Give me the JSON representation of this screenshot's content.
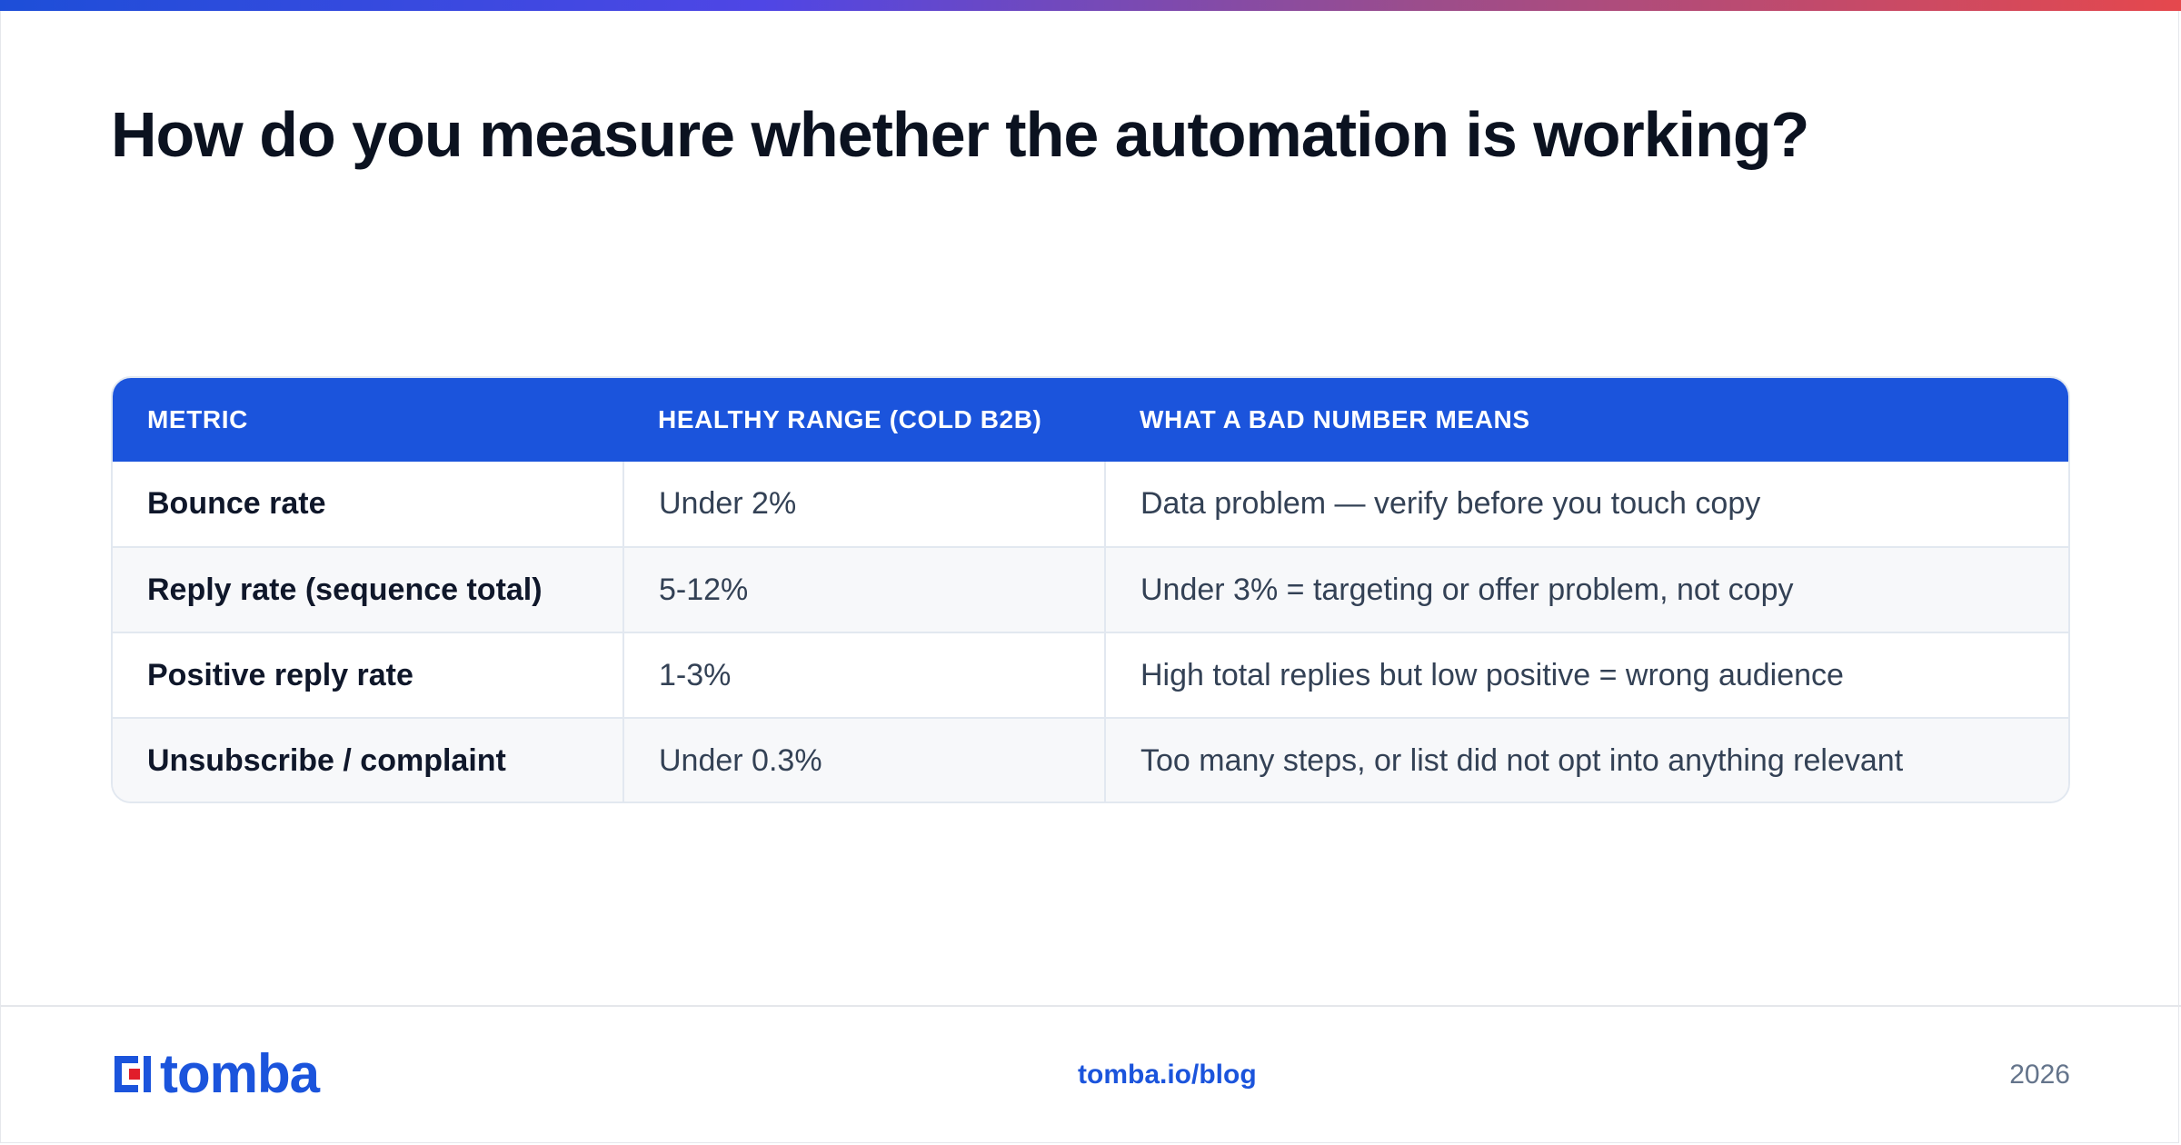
{
  "title": "How do you measure whether the automation is working?",
  "colors": {
    "accent": "#1b54dc",
    "title": "#0b1220",
    "body": "#334155",
    "muted": "#64748b",
    "logo_red": "#e11d2a"
  },
  "table": {
    "headers": [
      "METRIC",
      "HEALTHY RANGE (COLD B2B)",
      "WHAT A BAD NUMBER MEANS"
    ],
    "rows": [
      {
        "metric": "Bounce rate",
        "range": "Under 2%",
        "meaning": "Data problem — verify before you touch copy"
      },
      {
        "metric": "Reply rate (sequence total)",
        "range": "5-12%",
        "meaning": "Under 3% = targeting or offer problem, not copy"
      },
      {
        "metric": "Positive reply rate",
        "range": "1-3%",
        "meaning": "High total replies but low positive = wrong audience"
      },
      {
        "metric": "Unsubscribe / complaint",
        "range": "Under 0.3%",
        "meaning": "Too many steps, or list did not opt into anything relevant"
      }
    ]
  },
  "footer": {
    "logo_text": "tomba",
    "logo_icon": "tomba-logo-icon",
    "link": "tomba.io/blog",
    "year": "2026"
  }
}
